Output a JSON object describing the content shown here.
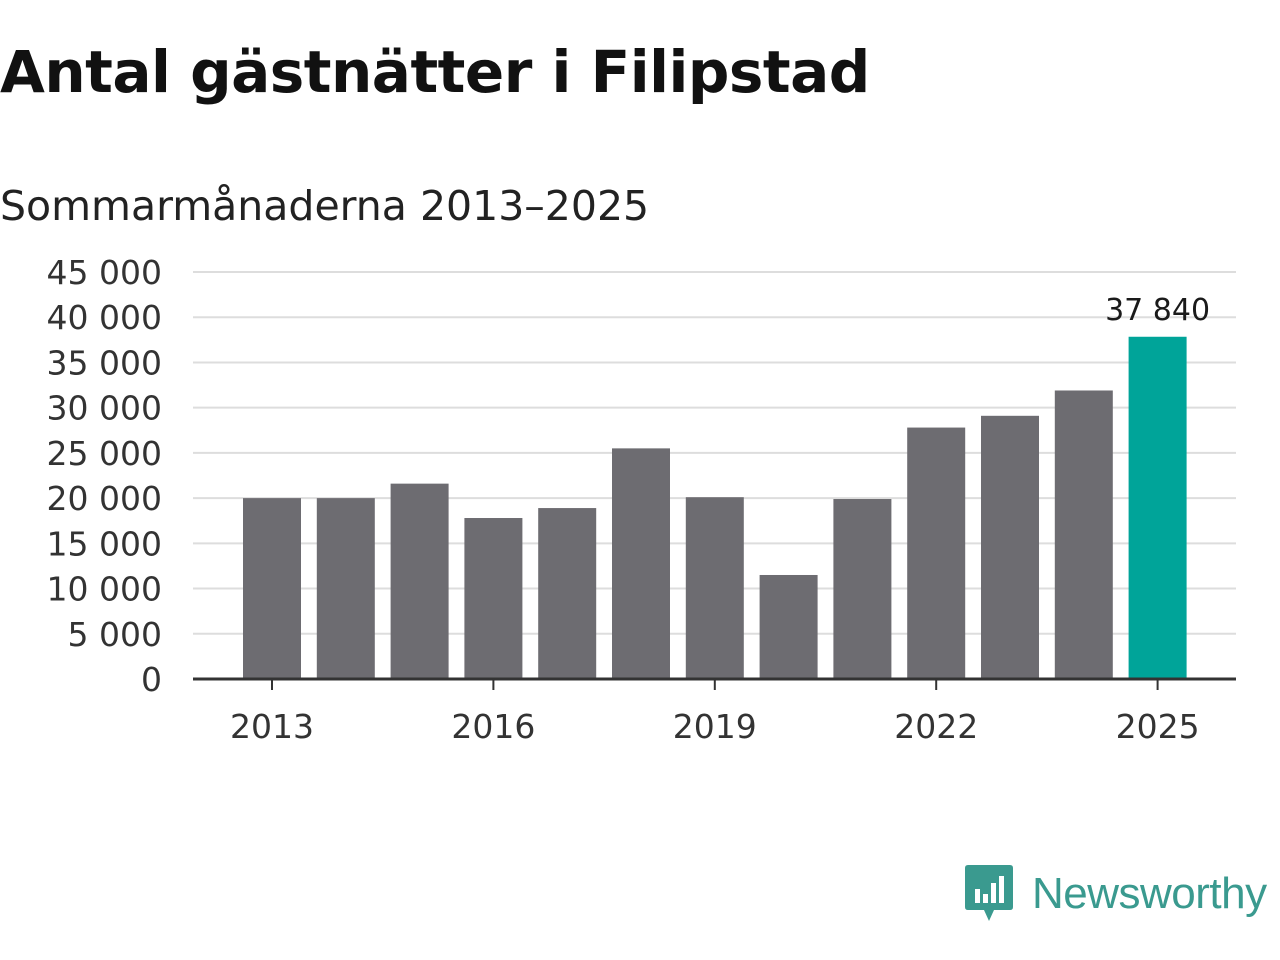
{
  "chart_data": {
    "type": "bar",
    "title": "Antal gästnätter i Filipstad",
    "subtitle": "Sommarmånaderna 2013–2025",
    "xlabel": "",
    "ylabel": "",
    "x": [
      2013,
      2014,
      2015,
      2016,
      2017,
      2018,
      2019,
      2020,
      2021,
      2022,
      2023,
      2024,
      2025
    ],
    "values": [
      20000,
      20000,
      21600,
      17800,
      18900,
      25500,
      20100,
      11500,
      19900,
      27800,
      29100,
      31900,
      37840
    ],
    "ylim": [
      0,
      45000
    ],
    "y_ticks": [
      "0",
      "5 000",
      "10 000",
      "15 000",
      "20 000",
      "25 000",
      "30 000",
      "35 000",
      "40 000",
      "45 000"
    ],
    "y_tick_values": [
      0,
      5000,
      10000,
      15000,
      20000,
      25000,
      30000,
      35000,
      40000,
      45000
    ],
    "x_ticks": [
      "2013",
      "2016",
      "2019",
      "2022",
      "2025"
    ],
    "x_tick_values": [
      2013,
      2016,
      2019,
      2022,
      2025
    ],
    "annotation": {
      "x": 2025,
      "label": "37 840"
    },
    "colors": {
      "bar": "#6d6c71",
      "highlight": "#00a499",
      "grid": "#dddddd",
      "axis": "#333333"
    },
    "grid": true,
    "legend": "none"
  },
  "brand": {
    "name": "Newsworthy",
    "icon": "newsworthy-logo-icon",
    "color": "#3a9a8f"
  }
}
